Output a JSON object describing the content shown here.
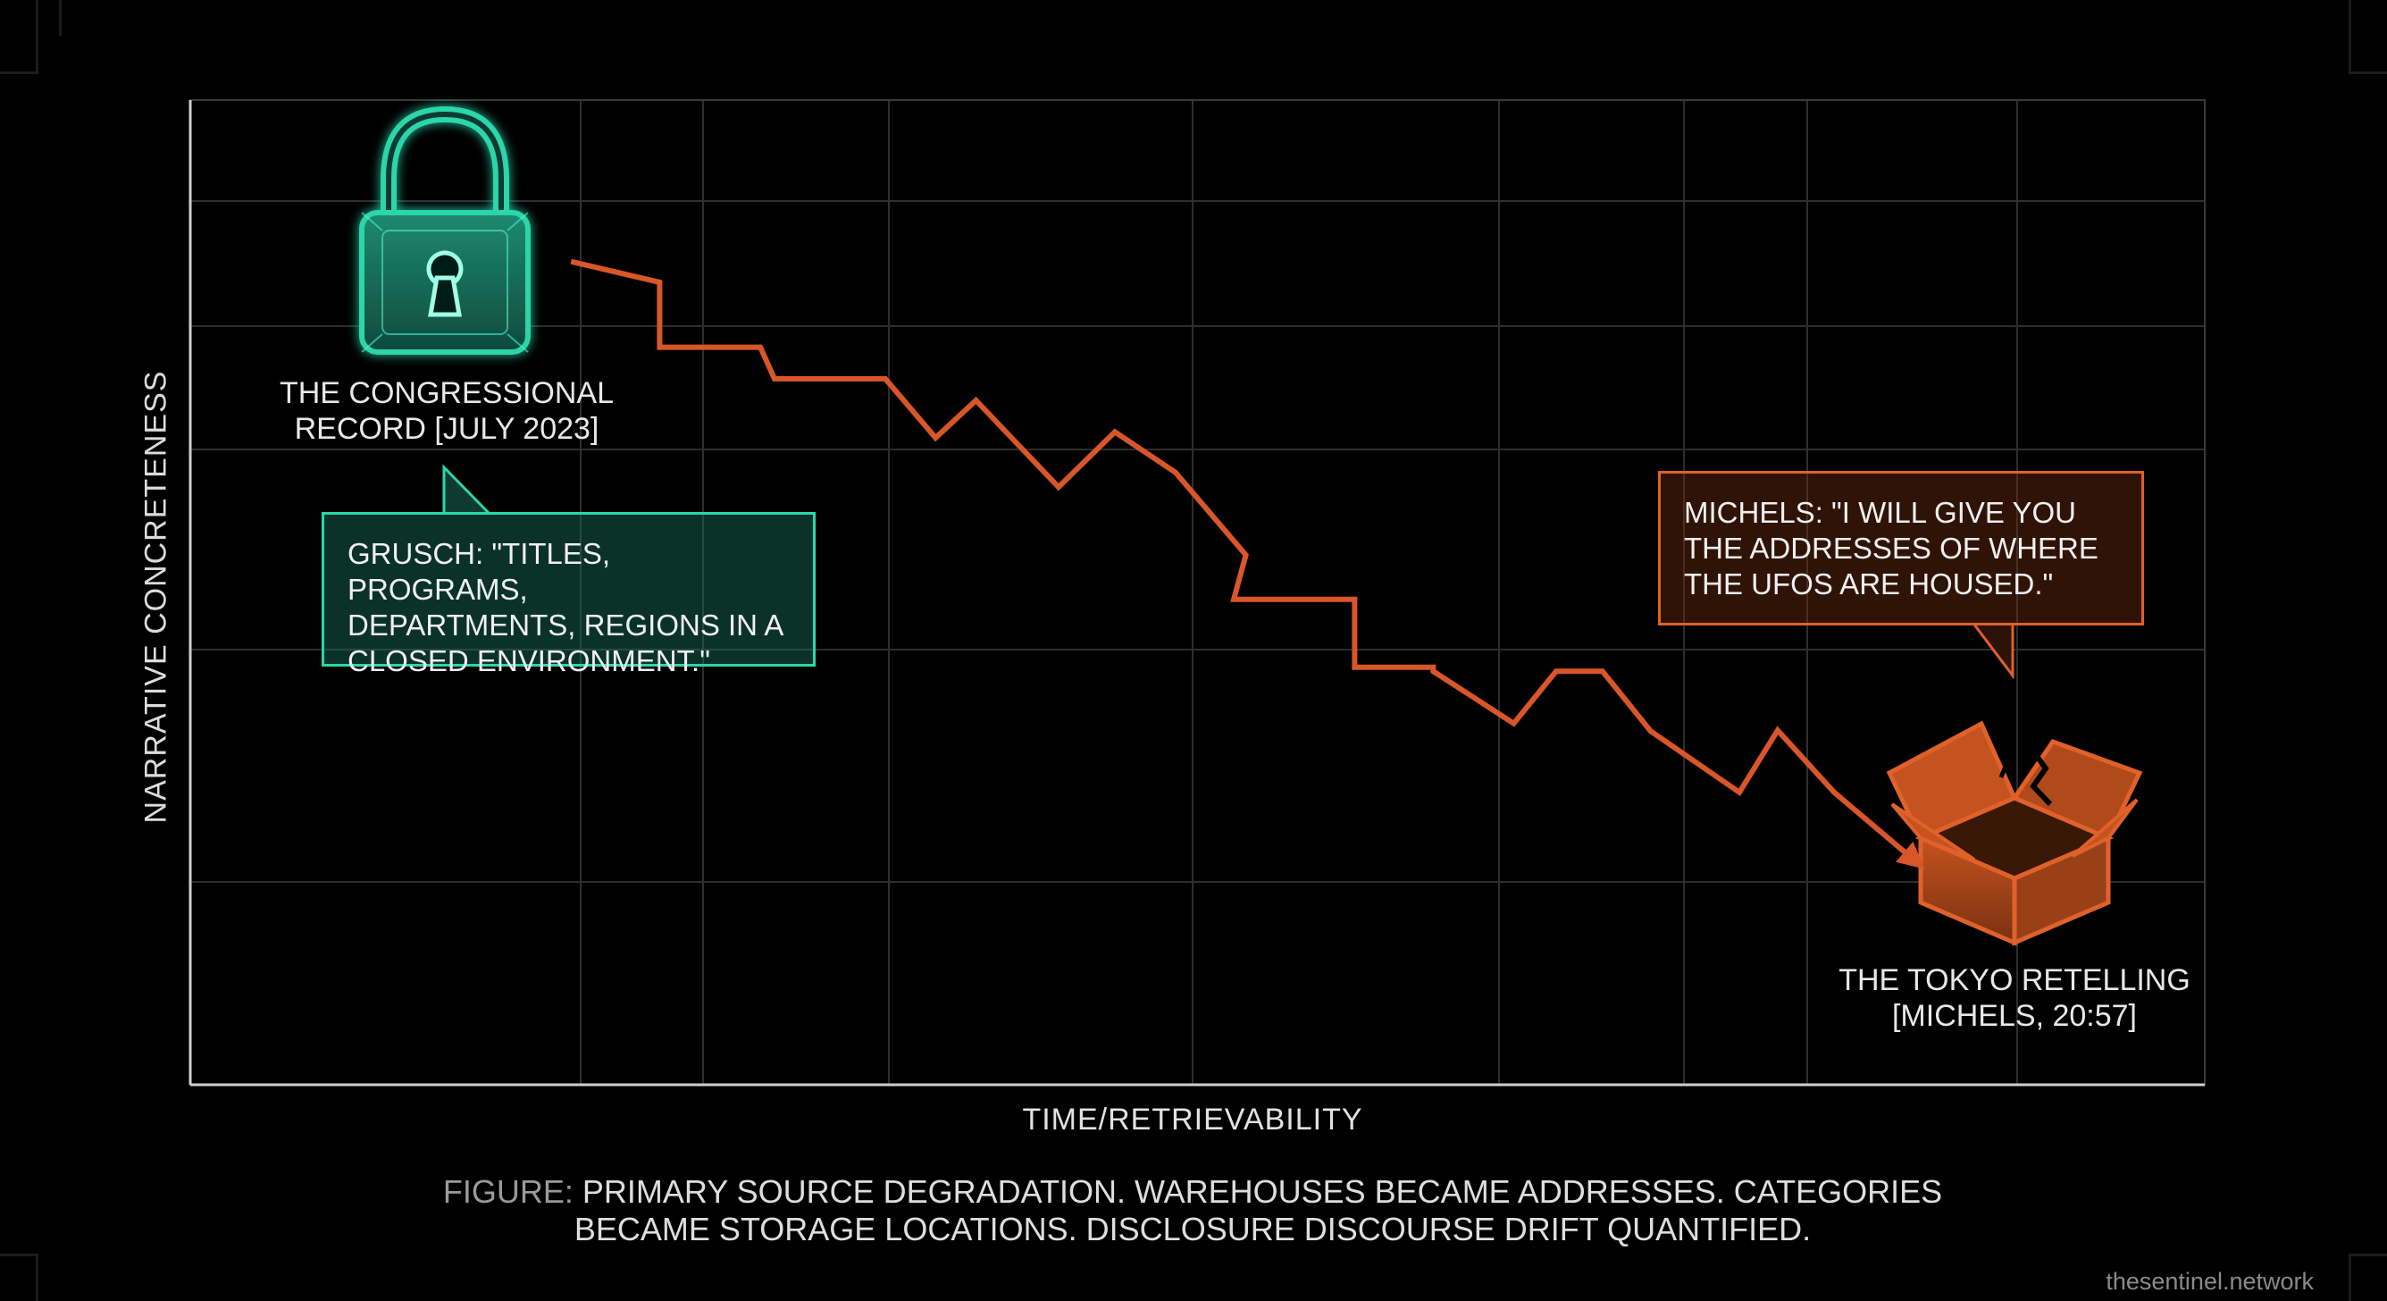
{
  "chart_data": {
    "type": "line",
    "title": "",
    "xlabel": "TIME/RETRIEVABILITY",
    "ylabel": "NARRATIVE CONCRETENESS",
    "ylim": [
      0,
      1
    ],
    "xlim": [
      0,
      1
    ],
    "grid": true,
    "series": [
      {
        "color": "#d8562a",
        "x": [
          0.189,
          0.233,
          0.233,
          0.283,
          0.29,
          0.345,
          0.37,
          0.39,
          0.431,
          0.459,
          0.489,
          0.524,
          0.518,
          0.578,
          0.578,
          0.617,
          0.617,
          0.657,
          0.678,
          0.701,
          0.725,
          0.769,
          0.788,
          0.816,
          0.857
        ],
        "y": [
          0.836,
          0.815,
          0.749,
          0.749,
          0.717,
          0.717,
          0.657,
          0.695,
          0.607,
          0.663,
          0.622,
          0.538,
          0.493,
          0.493,
          0.424,
          0.424,
          0.42,
          0.367,
          0.42,
          0.42,
          0.359,
          0.297,
          0.36,
          0.297,
          0.226
        ]
      }
    ],
    "annotations": {
      "start_label": "THE CONGRESSIONAL RECORD [JULY 2023]",
      "start_quote": "GRUSCH: \"TITLES, PROGRAMS, DEPARTMENTS, REGIONS IN A CLOSED ENVIRONMENT.\"",
      "end_label": "THE TOKYO RETELLING [MICHELS, 20:57]",
      "end_quote": "MICHELS: \"I WILL GIVE YOU THE ADDRESSES OF WHERE THE UFOS ARE HOUSED.\"",
      "start_icon": "padlock-icon",
      "end_icon": "broken-open-box-icon"
    }
  },
  "start": {
    "label_line1": "THE CONGRESSIONAL",
    "label_line2": "RECORD [JULY 2023]",
    "quote_line1": "GRUSCH: \"TITLES, PROGRAMS,",
    "quote_line2": "DEPARTMENTS, REGIONS IN A",
    "quote_line3": "CLOSED ENVIRONMENT.\"",
    "color": "#2bd6aa"
  },
  "end": {
    "label_line1": "THE TOKYO RETELLING",
    "label_line2": "[MICHELS, 20:57]",
    "quote_line1": "MICHELS: \"I WILL GIVE YOU",
    "quote_line2": "THE ADDRESSES OF WHERE",
    "quote_line3": "THE UFOS ARE HOUSED.\"",
    "color": "#e0612a"
  },
  "caption": {
    "lead": "FIGURE:",
    "line1": "PRIMARY SOURCE DEGRADATION. WAREHOUSES BECAME ADDRESSES. CATEGORIES",
    "line2": "BECAME STORAGE LOCATIONS. DISCLOSURE DISCOURSE DRIFT QUANTIFIED."
  },
  "watermark": "thesentinel.network"
}
